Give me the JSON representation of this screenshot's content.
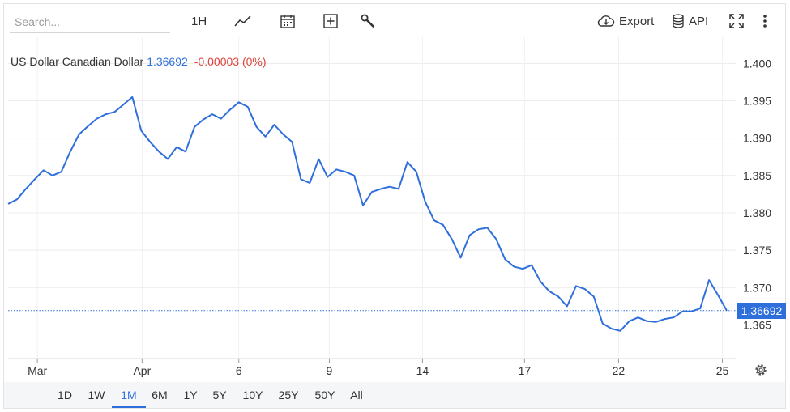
{
  "toolbar": {
    "search_placeholder": "Search...",
    "interval_label": "1H",
    "export_label": "Export",
    "api_label": "API"
  },
  "legend": {
    "name": "US Dollar Canadian Dollar",
    "price": "1.36692",
    "change": "-0.00003 (0%)"
  },
  "last_price_label": "1.36692",
  "ranges": [
    "1D",
    "1W",
    "1M",
    "6M",
    "1Y",
    "5Y",
    "10Y",
    "25Y",
    "50Y",
    "All"
  ],
  "active_range": "1M",
  "colors": {
    "line": "#2f6fdc",
    "change_negative": "#e0433d"
  },
  "chart_data": {
    "type": "line",
    "title": "",
    "xlabel": "",
    "ylabel": "",
    "y_axis": {
      "position": "right",
      "ylim": [
        1.3605,
        1.4035
      ],
      "ticks": [
        1.4,
        1.395,
        1.39,
        1.385,
        1.38,
        1.375,
        1.37,
        1.365
      ],
      "tick_labels": [
        "1.400",
        "1.395",
        "1.390",
        "1.385",
        "1.380",
        "1.375",
        "1.370",
        "1.365"
      ]
    },
    "x_axis": {
      "tick_labels": [
        "Mar",
        "Apr",
        "6",
        "9",
        "14",
        "17",
        "22",
        "25"
      ],
      "tick_index": [
        3.3,
        15.1,
        26,
        36.2,
        46.7,
        58.2,
        68.8,
        80.5
      ],
      "xlim": [
        0,
        82
      ]
    },
    "grid": true,
    "last_value": 1.36692,
    "series": [
      {
        "values": [
          1.3812,
          1.3818,
          1.3832,
          1.3845,
          1.3857,
          1.385,
          1.3855,
          1.3882,
          1.3905,
          1.3916,
          1.3926,
          1.3932,
          1.3935,
          1.3945,
          1.3955,
          1.391,
          1.3895,
          1.3882,
          1.3872,
          1.3888,
          1.3882,
          1.3915,
          1.3925,
          1.3932,
          1.3926,
          1.3938,
          1.3948,
          1.3942,
          1.3915,
          1.3902,
          1.3918,
          1.3905,
          1.3895,
          1.3845,
          1.384,
          1.3872,
          1.3848,
          1.3858,
          1.3855,
          1.385,
          1.381,
          1.3828,
          1.3832,
          1.3835,
          1.3832,
          1.3868,
          1.3855,
          1.3815,
          1.379,
          1.3784,
          1.3765,
          1.374,
          1.377,
          1.3778,
          1.378,
          1.3765,
          1.3738,
          1.3728,
          1.3725,
          1.373,
          1.3708,
          1.3695,
          1.3688,
          1.3675,
          1.3702,
          1.3698,
          1.3688,
          1.3652,
          1.3645,
          1.3642,
          1.3655,
          1.366,
          1.3655,
          1.3654,
          1.3658,
          1.366,
          1.3668,
          1.3668,
          1.3672,
          1.371,
          1.369,
          1.3669
        ]
      }
    ]
  }
}
